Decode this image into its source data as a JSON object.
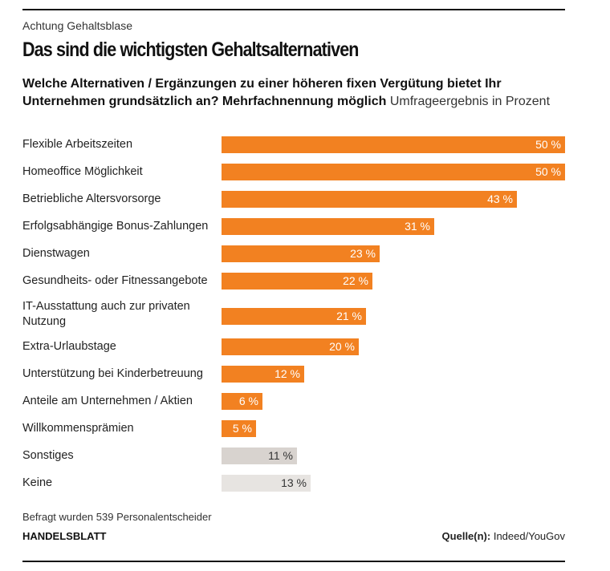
{
  "header": {
    "kicker": "Achtung Gehaltsblase",
    "title": "Das sind die wichtigsten Gehaltsalternativen",
    "question": "Welche Alternativen / Ergänzungen zu einer höheren fixen Vergütung bietet Ihr Unternehmen grundsätzlich an? Mehrfachnennung möglich",
    "unit_note": "Umfrageergebnis in Prozent"
  },
  "chart_data": {
    "type": "bar",
    "orientation": "horizontal",
    "xlim": [
      0,
      50
    ],
    "grid": false,
    "categories": [
      "Flexible Arbeitszeiten",
      "Homeoffice Möglichkeit",
      "Betriebliche Altersvorsorge",
      "Erfolgsabhängige Bonus-Zahlungen",
      "Dienstwagen",
      "Gesundheits- oder Fitnessangebote",
      "IT-Ausstattung auch zur privaten Nutzung",
      "Extra-Urlaubstage",
      "Unterstützung bei Kinderbetreuung",
      "Anteile am Unternehmen / Aktien",
      "Willkommensprämien",
      "Sonstiges",
      "Keine"
    ],
    "values": [
      50,
      50,
      43,
      31,
      23,
      22,
      21,
      20,
      12,
      6,
      5,
      11,
      13
    ],
    "value_labels": [
      "50 %",
      "50 %",
      "43 %",
      "31 %",
      "23 %",
      "22 %",
      "21 %",
      "20 %",
      "12 %",
      "6 %",
      "5 %",
      "11 %",
      "13 %"
    ],
    "colors": {
      "primary": "#f28121",
      "other": "#d8d3cf",
      "none": "#e7e4e1",
      "label_on_primary": "#ffffff",
      "label_on_grey": "#333333"
    },
    "bar_color_keys": [
      "primary",
      "primary",
      "primary",
      "primary",
      "primary",
      "primary",
      "primary",
      "primary",
      "primary",
      "primary",
      "primary",
      "other",
      "none"
    ]
  },
  "footer": {
    "note": "Befragt wurden 539 Personalentscheider",
    "brand": "HANDELSBLATT",
    "source_label": "Quelle(n):",
    "source_value": "Indeed/YouGov"
  }
}
